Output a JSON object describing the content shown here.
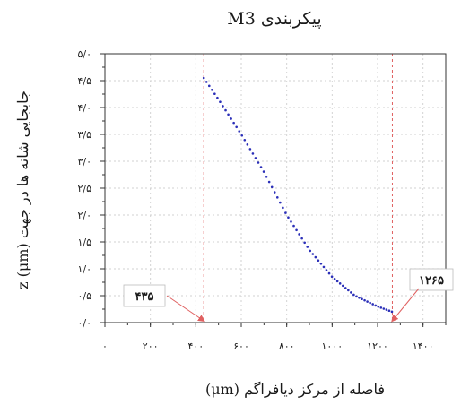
{
  "chart_data": {
    "type": "scatter",
    "title": "پیکربندی M3",
    "xlabel": "فاصله از مرکز دیافراگم (μm)",
    "ylabel": "جابجایی شانه ها در جهت z (μm)",
    "xlim": [
      0,
      1500
    ],
    "ylim": [
      0,
      5
    ],
    "x_ticks": [
      {
        "value": 0,
        "label": "۰"
      },
      {
        "value": 200,
        "label": "۲۰۰"
      },
      {
        "value": 400,
        "label": "۴۰۰"
      },
      {
        "value": 600,
        "label": "۶۰۰"
      },
      {
        "value": 800,
        "label": "۸۰۰"
      },
      {
        "value": 1000,
        "label": "۱۰۰۰"
      },
      {
        "value": 1200,
        "label": "۱۲۰۰"
      },
      {
        "value": 1400,
        "label": "۱۴۰۰"
      }
    ],
    "y_ticks": [
      {
        "value": 0,
        "label": "۰/۰"
      },
      {
        "value": 0.5,
        "label": "۰/۵"
      },
      {
        "value": 1.0,
        "label": "۱/۰"
      },
      {
        "value": 1.5,
        "label": "۱/۵"
      },
      {
        "value": 2.0,
        "label": "۲/۰"
      },
      {
        "value": 2.5,
        "label": "۲/۵"
      },
      {
        "value": 3.0,
        "label": "۳/۰"
      },
      {
        "value": 3.5,
        "label": "۳/۵"
      },
      {
        "value": 4.0,
        "label": "۴/۰"
      },
      {
        "value": 4.5,
        "label": "۴/۵"
      },
      {
        "value": 5.0,
        "label": "۵/۰"
      }
    ],
    "grid": true,
    "series": [
      {
        "color": "#2b2fb8",
        "x": [
          435,
          500,
          600,
          700,
          800,
          900,
          1000,
          1100,
          1200,
          1265
        ],
        "y": [
          4.55,
          4.15,
          3.5,
          2.8,
          2.0,
          1.35,
          0.85,
          0.5,
          0.3,
          0.2
        ]
      }
    ],
    "vlines": [
      {
        "x": 435,
        "color": "#e06060",
        "label": "۴۳۵"
      },
      {
        "x": 1265,
        "color": "#e06060",
        "label": "۱۲۶۵"
      }
    ]
  }
}
